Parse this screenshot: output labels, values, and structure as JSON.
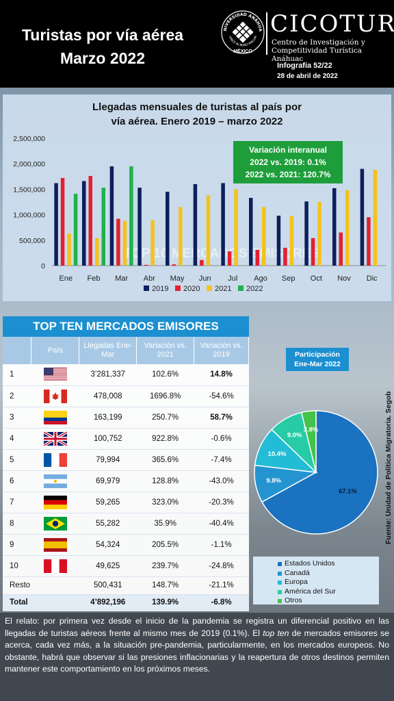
{
  "header": {
    "title_line1": "Turistas por vía aérea",
    "title_line2": "Marzo 2022",
    "seal_text": "UNIVERSIDAD ANÁHUAC",
    "seal_motto": "VINCE IN BONO MALUM",
    "seal_city": "MÉXICO",
    "brand": "CICOTUR",
    "brand_sub1": "Centro de Investigación y",
    "brand_sub2": "Competitividad Turística Anáhuac",
    "info_number": "Infografía 52/22",
    "info_date": "28 de abril de 2022"
  },
  "chart_data": {
    "type": "bar",
    "title_line1": "Llegadas mensuales de turistas al país por",
    "title_line2": "vía aérea. Enero 2019 – marzo 2022",
    "categories": [
      "Ene",
      "Feb",
      "Mar",
      "Abr",
      "May",
      "Jun",
      "Jul",
      "Ago",
      "Sep",
      "Oct",
      "Nov",
      "Dic"
    ],
    "ylim": [
      0,
      2500000
    ],
    "yticks": [
      "0",
      "500,000",
      "1,000,000",
      "1,500,000",
      "2,000,000",
      "2,500,000"
    ],
    "series": [
      {
        "name": "2019",
        "color": "#0d1f5c",
        "values": [
          1620000,
          1660000,
          1950000,
          1530000,
          1450000,
          1600000,
          1620000,
          1330000,
          980000,
          1260000,
          1520000,
          1900000
        ]
      },
      {
        "name": "2020",
        "color": "#e5202e",
        "values": [
          1720000,
          1760000,
          920000,
          15000,
          25000,
          110000,
          280000,
          310000,
          350000,
          540000,
          650000,
          950000
        ]
      },
      {
        "name": "2021",
        "color": "#f5c21b",
        "values": [
          630000,
          540000,
          880000,
          890000,
          1150000,
          1380000,
          1500000,
          1150000,
          970000,
          1250000,
          1480000,
          1880000
        ]
      },
      {
        "name": "2022",
        "color": "#20b14c",
        "values": [
          1410000,
          1530000,
          1950000,
          null,
          null,
          null,
          null,
          null,
          null,
          null,
          null,
          null
        ]
      }
    ],
    "annotation": {
      "line1": "Variación interanual",
      "line2": "2022 vs. 2019: 0.1%",
      "line3": "2022 vs. 2021: 120.7%"
    },
    "watermark": "TOP 10 MERCADOS EMISORES",
    "legend_position": "bottom",
    "grid": false
  },
  "table": {
    "title": "TOP TEN MERCADOS EMISORES",
    "headers": [
      "",
      "País",
      "Llegadas Ene-Mar",
      "Variación vs. 2021",
      "Variación vs. 2019"
    ],
    "rows": [
      {
        "rank": "1",
        "flag": "usa-flag",
        "arrivals": "3’281,337",
        "var21": "102.6%",
        "var19": "14.8%",
        "bold19": true
      },
      {
        "rank": "2",
        "flag": "canada-flag",
        "arrivals": "478,008",
        "var21": "1696.8%",
        "var19": "-54.6%",
        "bold19": false
      },
      {
        "rank": "3",
        "flag": "colombia-flag",
        "arrivals": "163,199",
        "var21": "250.7%",
        "var19": "58.7%",
        "bold19": true
      },
      {
        "rank": "4",
        "flag": "uk-flag",
        "arrivals": "100,752",
        "var21": "922.8%",
        "var19": "-0.6%",
        "bold19": false
      },
      {
        "rank": "5",
        "flag": "france-flag",
        "arrivals": "79,994",
        "var21": "365.6%",
        "var19": "-7.4%",
        "bold19": false
      },
      {
        "rank": "6",
        "flag": "argentina-flag",
        "arrivals": "69,979",
        "var21": "128.8%",
        "var19": "-43.0%",
        "bold19": false
      },
      {
        "rank": "7",
        "flag": "germany-flag",
        "arrivals": "59,265",
        "var21": "323.0%",
        "var19": "-20.3%",
        "bold19": false
      },
      {
        "rank": "8",
        "flag": "brazil-flag",
        "arrivals": "55,282",
        "var21": "35.9%",
        "var19": "-40.4%",
        "bold19": false
      },
      {
        "rank": "9",
        "flag": "spain-flag",
        "arrivals": "54,324",
        "var21": "205.5%",
        "var19": "-1.1%",
        "bold19": false
      },
      {
        "rank": "10",
        "flag": "peru-flag",
        "arrivals": "49,625",
        "var21": "239.7%",
        "var19": "-24.8%",
        "bold19": false
      }
    ],
    "resto": {
      "label": "Resto",
      "arrivals": "500,431",
      "var21": "148.7%",
      "var19": "-21.1%"
    },
    "total": {
      "label": "Total",
      "arrivals": "4’892,196",
      "var21": "139.9%",
      "var19": "-6.8%"
    }
  },
  "pie": {
    "title_line1": "Participación",
    "title_line2": "Ene-Mar 2022",
    "slices": [
      {
        "name": "Estados Unidos",
        "value": 67.1,
        "label": "67.1%",
        "color": "#1a72c0"
      },
      {
        "name": "Canadá",
        "value": 9.8,
        "label": "9.8%",
        "color": "#2494d1"
      },
      {
        "name": "Europa",
        "value": 10.4,
        "label": "10.4%",
        "color": "#23bcd6"
      },
      {
        "name": "América del Sur",
        "value": 9.0,
        "label": "9.0%",
        "color": "#27cba6"
      },
      {
        "name": "Otros",
        "value": 3.8,
        "label": "3.8%",
        "color": "#43c24c"
      }
    ]
  },
  "source": "Fuente: Unidad de Política Migratoria. Segob",
  "footer": {
    "p1": "El relato: por primera vez desde el inicio de la pandemia se registra un diferencial positivo en las llegadas de turistas aéreos frente al mismo mes de 2019 (0.1%). El ",
    "p_italic": "top ten",
    "p2": " de mercados emisores se acerca, cada vez más, a la situación pre-pandemia, particularmente, en los mercados europeos. No obstante, habrá que observar si las presiones inflacionarias y la reapertura de otros destinos permiten mantener este comportamiento en los próximos meses."
  }
}
